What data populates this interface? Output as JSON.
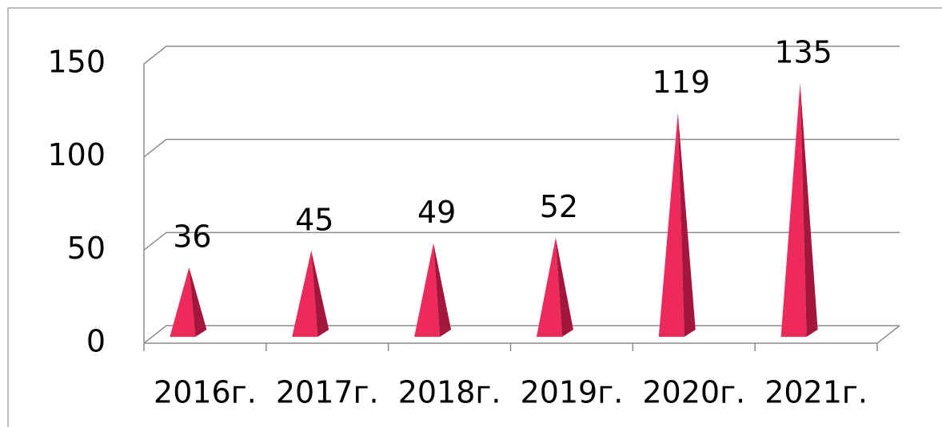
{
  "chart_data": {
    "type": "bar",
    "categories": [
      "2016г.",
      "2017г.",
      "2018г.",
      "2019г.",
      "2020г.",
      "2021г."
    ],
    "values": [
      36,
      45,
      49,
      52,
      119,
      135
    ],
    "color": "#ee2a5a",
    "ylim": [
      0,
      150
    ],
    "yticks": [
      0,
      50,
      100,
      150
    ],
    "grid": true
  }
}
